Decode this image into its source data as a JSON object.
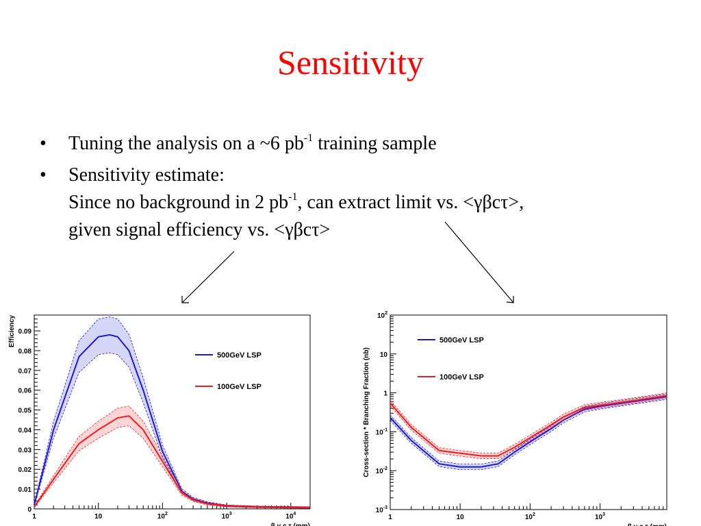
{
  "slide": {
    "title": "Sensitivity",
    "bullet_char": "•",
    "bullets": [
      {
        "pre": "Tuning the analysis on a ~6 pb",
        "sup": "-1",
        "post": " training sample"
      },
      {
        "line1": "Sensitivity estimate:",
        "pre": "Since no background in 2 pb",
        "sup": "-1",
        "post": ", can extract limit vs. <γβcτ>,",
        "line3": "given signal efficiency vs. <γβcτ>"
      }
    ]
  },
  "chart_data": [
    {
      "type": "line",
      "xscale": "log",
      "xlim": [
        1,
        20000
      ],
      "ylim": [
        0,
        0.098
      ],
      "ylabel": "Efficiency",
      "xlabel": "β γ c τ (mm)",
      "xticks": [
        "1",
        "10",
        "10^2",
        "10^3",
        "10^4"
      ],
      "yticks": [
        "0",
        "0.01",
        "0.02",
        "0.03",
        "0.04",
        "0.05",
        "0.06",
        "0.07",
        "0.08",
        "0.09"
      ],
      "legend_position": "right",
      "series": [
        {
          "name": "500GeV LSP",
          "color": "#1a1ad6",
          "x": [
            1,
            2,
            5,
            10,
            15,
            20,
            30,
            50,
            100,
            200,
            300,
            500,
            1000,
            3000,
            10000,
            20000
          ],
          "y": [
            0.002,
            0.04,
            0.077,
            0.087,
            0.088,
            0.087,
            0.08,
            0.06,
            0.029,
            0.009,
            0.005,
            0.003,
            0.0015,
            0.001,
            0.0008,
            0.0007
          ]
        },
        {
          "name": "100GeV LSP",
          "color": "#ee1c1c",
          "x": [
            1,
            2,
            5,
            10,
            20,
            30,
            50,
            100,
            200,
            300,
            500,
            1000,
            3000,
            10000,
            20000
          ],
          "y": [
            0.001,
            0.015,
            0.033,
            0.04,
            0.046,
            0.047,
            0.04,
            0.024,
            0.008,
            0.0045,
            0.0025,
            0.0015,
            0.001,
            0.0008,
            0.0007
          ]
        }
      ]
    },
    {
      "type": "line",
      "xscale": "log",
      "yscale": "log",
      "xlim": [
        1,
        9000
      ],
      "ylim": [
        0.001,
        100
      ],
      "ylabel": "Cross-section * Branching Fraction (nb)",
      "xlabel": "β γ c τ (mm)",
      "xticks": [
        "1",
        "10",
        "10^2",
        "10^3"
      ],
      "yticks": [
        "10^-3",
        "10^-2",
        "10^-1",
        "1",
        "10",
        "10^2"
      ],
      "legend_position": "top-left",
      "series": [
        {
          "name": "500GeV LSP",
          "color": "#1a1ad6",
          "x": [
            1,
            2,
            5,
            10,
            20,
            35,
            60,
            100,
            200,
            300,
            600,
            1000,
            3000,
            9000
          ],
          "y": [
            0.23,
            0.06,
            0.015,
            0.0125,
            0.0125,
            0.015,
            0.03,
            0.055,
            0.12,
            0.2,
            0.38,
            0.45,
            0.6,
            0.8
          ]
        },
        {
          "name": "100GeV LSP",
          "color": "#ee1c1c",
          "x": [
            1,
            2,
            5,
            10,
            20,
            35,
            60,
            100,
            200,
            300,
            600,
            1000,
            3000,
            9000
          ],
          "y": [
            0.55,
            0.13,
            0.033,
            0.028,
            0.024,
            0.024,
            0.04,
            0.07,
            0.15,
            0.24,
            0.42,
            0.48,
            0.63,
            0.85
          ]
        }
      ]
    }
  ]
}
